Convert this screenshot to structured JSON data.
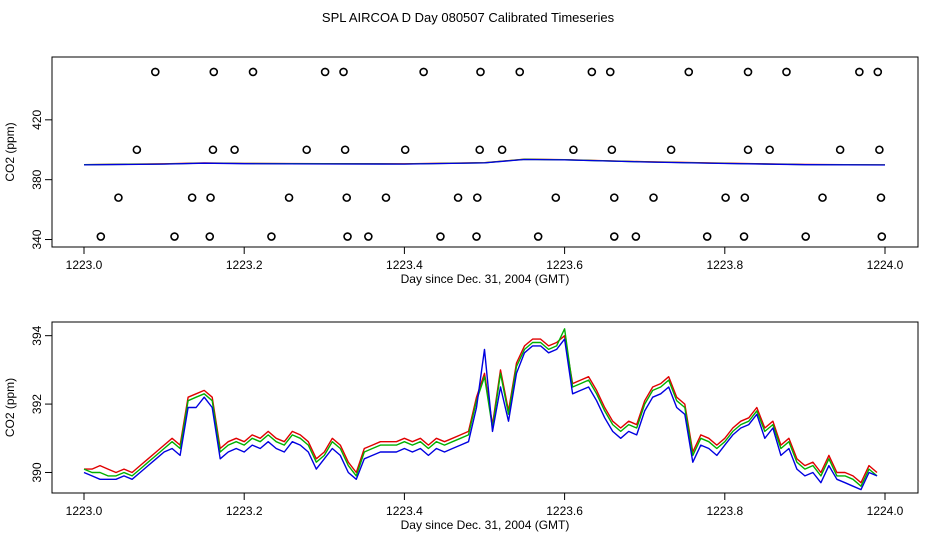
{
  "figure_title": "SPL AIRCOA D  Day 080507  Calibrated Timeseries",
  "chart_data": [
    {
      "type": "line+scatter",
      "xlabel": "Day since Dec. 31, 2004 (GMT)",
      "ylabel": "CO2 (ppm)",
      "xlim": [
        1223.0,
        1224.0
      ],
      "ylim": [
        335,
        462
      ],
      "xticks": [
        1223.0,
        1223.2,
        1223.4,
        1223.6,
        1223.8,
        1224.0
      ],
      "xtick_labels": [
        "1223.0",
        "1223.2",
        "1223.4",
        "1223.6",
        "1223.8",
        "1224.0"
      ],
      "yticks": [
        340,
        380,
        420
      ],
      "ytick_labels": [
        "340",
        "380",
        "420"
      ],
      "lines": [
        {
          "name": "red",
          "color": "#e00000",
          "x": [
            1223.0,
            1223.1,
            1223.15,
            1223.2,
            1223.3,
            1223.4,
            1223.5,
            1223.55,
            1223.6,
            1223.7,
            1223.8,
            1223.9,
            1224.0
          ],
          "y": [
            390.1,
            390.6,
            391.2,
            390.9,
            390.7,
            390.6,
            391.4,
            393.7,
            393.4,
            392.0,
            391.0,
            390.2,
            389.9
          ]
        },
        {
          "name": "green",
          "color": "#00b000",
          "x": [
            1223.0,
            1223.1,
            1223.15,
            1223.2,
            1223.3,
            1223.4,
            1223.5,
            1223.55,
            1223.6,
            1223.7,
            1223.8,
            1223.9,
            1224.0
          ],
          "y": [
            390.0,
            390.5,
            391.1,
            390.8,
            390.6,
            390.5,
            391.3,
            393.6,
            393.3,
            391.9,
            390.9,
            390.1,
            389.9
          ]
        },
        {
          "name": "blue",
          "color": "#0000e0",
          "x": [
            1223.0,
            1223.1,
            1223.15,
            1223.2,
            1223.3,
            1223.4,
            1223.5,
            1223.55,
            1223.6,
            1223.7,
            1223.8,
            1223.9,
            1224.0
          ],
          "y": [
            389.9,
            390.4,
            391.0,
            390.7,
            390.5,
            390.4,
            391.2,
            393.5,
            393.2,
            391.8,
            390.8,
            390.0,
            389.8
          ]
        }
      ],
      "markers": {
        "shape": "open-circle",
        "color": "#000000",
        "points": [
          [
            1223.089,
            452
          ],
          [
            1223.162,
            452
          ],
          [
            1223.211,
            452
          ],
          [
            1223.301,
            452
          ],
          [
            1223.324,
            452
          ],
          [
            1223.424,
            452
          ],
          [
            1223.495,
            452
          ],
          [
            1223.544,
            452
          ],
          [
            1223.634,
            452
          ],
          [
            1223.657,
            452
          ],
          [
            1223.755,
            452
          ],
          [
            1223.829,
            452
          ],
          [
            1223.877,
            452
          ],
          [
            1223.968,
            452
          ],
          [
            1223.991,
            452
          ],
          [
            1223.066,
            400
          ],
          [
            1223.161,
            400
          ],
          [
            1223.188,
            400
          ],
          [
            1223.278,
            400
          ],
          [
            1223.326,
            400
          ],
          [
            1223.401,
            400
          ],
          [
            1223.494,
            400
          ],
          [
            1223.522,
            400
          ],
          [
            1223.611,
            400
          ],
          [
            1223.659,
            400
          ],
          [
            1223.733,
            400
          ],
          [
            1223.829,
            400
          ],
          [
            1223.856,
            400
          ],
          [
            1223.944,
            400
          ],
          [
            1223.993,
            400
          ],
          [
            1223.043,
            368
          ],
          [
            1223.135,
            368
          ],
          [
            1223.158,
            368
          ],
          [
            1223.256,
            368
          ],
          [
            1223.328,
            368
          ],
          [
            1223.377,
            368
          ],
          [
            1223.467,
            368
          ],
          [
            1223.491,
            368
          ],
          [
            1223.589,
            368
          ],
          [
            1223.662,
            368
          ],
          [
            1223.711,
            368
          ],
          [
            1223.801,
            368
          ],
          [
            1223.825,
            368
          ],
          [
            1223.922,
            368
          ],
          [
            1223.995,
            368
          ],
          [
            1223.021,
            342
          ],
          [
            1223.113,
            342
          ],
          [
            1223.157,
            342
          ],
          [
            1223.234,
            342
          ],
          [
            1223.329,
            342
          ],
          [
            1223.355,
            342
          ],
          [
            1223.445,
            342
          ],
          [
            1223.49,
            342
          ],
          [
            1223.567,
            342
          ],
          [
            1223.662,
            342
          ],
          [
            1223.689,
            342
          ],
          [
            1223.778,
            342
          ],
          [
            1223.824,
            342
          ],
          [
            1223.901,
            342
          ],
          [
            1223.996,
            342
          ]
        ]
      }
    },
    {
      "type": "line",
      "xlabel": "Day since Dec. 31, 2004 (GMT)",
      "ylabel": "CO2 (ppm)",
      "xlim": [
        1223.0,
        1224.0
      ],
      "ylim": [
        389.4,
        394.4
      ],
      "xticks": [
        1223.0,
        1223.2,
        1223.4,
        1223.6,
        1223.8,
        1224.0
      ],
      "xtick_labels": [
        "1223.0",
        "1223.2",
        "1223.4",
        "1223.6",
        "1223.8",
        "1224.0"
      ],
      "yticks": [
        390,
        392,
        394
      ],
      "ytick_labels": [
        "390",
        "392",
        "394"
      ],
      "x": [
        1223.0,
        1223.01,
        1223.02,
        1223.03,
        1223.04,
        1223.05,
        1223.06,
        1223.07,
        1223.08,
        1223.09,
        1223.1,
        1223.11,
        1223.12,
        1223.13,
        1223.14,
        1223.15,
        1223.16,
        1223.17,
        1223.18,
        1223.19,
        1223.2,
        1223.21,
        1223.22,
        1223.23,
        1223.24,
        1223.25,
        1223.26,
        1223.27,
        1223.28,
        1223.29,
        1223.3,
        1223.31,
        1223.32,
        1223.33,
        1223.34,
        1223.35,
        1223.36,
        1223.37,
        1223.38,
        1223.39,
        1223.4,
        1223.41,
        1223.42,
        1223.43,
        1223.44,
        1223.45,
        1223.46,
        1223.47,
        1223.48,
        1223.49,
        1223.5,
        1223.51,
        1223.52,
        1223.53,
        1223.54,
        1223.55,
        1223.56,
        1223.57,
        1223.58,
        1223.59,
        1223.6,
        1223.61,
        1223.62,
        1223.63,
        1223.64,
        1223.65,
        1223.66,
        1223.67,
        1223.68,
        1223.69,
        1223.7,
        1223.71,
        1223.72,
        1223.73,
        1223.74,
        1223.75,
        1223.76,
        1223.77,
        1223.78,
        1223.79,
        1223.8,
        1223.81,
        1223.82,
        1223.83,
        1223.84,
        1223.85,
        1223.86,
        1223.87,
        1223.88,
        1223.89,
        1223.9,
        1223.91,
        1223.92,
        1223.93,
        1223.94,
        1223.95,
        1223.96,
        1223.97,
        1223.98,
        1223.99
      ],
      "series": [
        {
          "name": "red",
          "color": "#e00000",
          "values": [
            390.1,
            390.1,
            390.2,
            390.1,
            390.0,
            390.1,
            390.0,
            390.2,
            390.4,
            390.6,
            390.8,
            391.0,
            390.8,
            392.2,
            392.3,
            392.4,
            392.2,
            390.7,
            390.9,
            391.0,
            390.9,
            391.1,
            391.0,
            391.2,
            391.0,
            390.9,
            391.2,
            391.1,
            390.9,
            390.4,
            390.6,
            391.0,
            390.8,
            390.3,
            390.0,
            390.7,
            390.8,
            390.9,
            390.9,
            390.9,
            391.0,
            390.9,
            391.0,
            390.8,
            391.0,
            390.9,
            391.0,
            391.1,
            391.2,
            392.2,
            392.9,
            391.4,
            393.0,
            391.8,
            393.2,
            393.7,
            393.9,
            393.9,
            393.7,
            393.8,
            394.0,
            392.6,
            392.7,
            392.8,
            392.4,
            391.9,
            391.5,
            391.3,
            391.5,
            391.4,
            392.1,
            392.5,
            392.6,
            392.8,
            392.2,
            392.0,
            390.6,
            391.1,
            391.0,
            390.8,
            391.0,
            391.3,
            391.5,
            391.6,
            391.9,
            391.3,
            391.5,
            390.8,
            391.0,
            390.4,
            390.2,
            390.3,
            390.0,
            390.5,
            390.0,
            390.0,
            389.9,
            389.7,
            390.2,
            390.0
          ]
        },
        {
          "name": "green",
          "color": "#00b000",
          "values": [
            390.1,
            390.0,
            390.0,
            389.9,
            389.9,
            390.0,
            389.9,
            390.1,
            390.3,
            390.5,
            390.7,
            390.9,
            390.7,
            392.1,
            392.2,
            392.3,
            392.1,
            390.6,
            390.8,
            390.9,
            390.8,
            391.0,
            390.9,
            391.1,
            390.9,
            390.8,
            391.1,
            391.0,
            390.8,
            390.3,
            390.5,
            390.9,
            390.7,
            390.2,
            389.9,
            390.6,
            390.7,
            390.8,
            390.8,
            390.8,
            390.9,
            390.8,
            390.9,
            390.7,
            390.9,
            390.8,
            390.9,
            391.0,
            391.1,
            392.1,
            392.8,
            391.3,
            392.9,
            391.7,
            393.1,
            393.6,
            393.8,
            393.8,
            393.6,
            393.7,
            394.2,
            392.5,
            392.6,
            392.7,
            392.3,
            391.8,
            391.4,
            391.2,
            391.4,
            391.3,
            392.0,
            392.4,
            392.5,
            392.7,
            392.1,
            391.9,
            390.5,
            391.0,
            390.9,
            390.7,
            390.9,
            391.2,
            391.4,
            391.5,
            391.8,
            391.2,
            391.4,
            390.7,
            390.9,
            390.3,
            390.1,
            390.2,
            389.9,
            390.4,
            389.9,
            389.9,
            389.8,
            389.6,
            390.1,
            389.9
          ]
        },
        {
          "name": "blue",
          "color": "#0000e0",
          "values": [
            390.0,
            389.9,
            389.8,
            389.8,
            389.8,
            389.9,
            389.8,
            390.0,
            390.2,
            390.4,
            390.6,
            390.7,
            390.5,
            391.9,
            391.9,
            392.2,
            391.9,
            390.4,
            390.6,
            390.7,
            390.6,
            390.8,
            390.7,
            390.9,
            390.7,
            390.6,
            390.9,
            390.8,
            390.6,
            390.1,
            390.4,
            390.7,
            390.5,
            390.0,
            389.8,
            390.4,
            390.5,
            390.6,
            390.6,
            390.6,
            390.7,
            390.6,
            390.7,
            390.5,
            390.7,
            390.6,
            390.7,
            390.8,
            390.9,
            391.9,
            393.6,
            391.2,
            392.5,
            391.5,
            392.9,
            393.5,
            393.7,
            393.7,
            393.5,
            393.6,
            393.9,
            392.3,
            392.4,
            392.5,
            392.1,
            391.6,
            391.2,
            391.0,
            391.2,
            391.1,
            391.8,
            392.2,
            392.3,
            392.5,
            391.9,
            391.7,
            390.3,
            390.8,
            390.7,
            390.5,
            390.8,
            391.1,
            391.3,
            391.4,
            391.7,
            391.0,
            391.3,
            390.5,
            390.7,
            390.1,
            389.9,
            390.0,
            389.7,
            390.2,
            389.8,
            389.7,
            389.6,
            389.5,
            390.0,
            389.9
          ]
        }
      ]
    }
  ]
}
